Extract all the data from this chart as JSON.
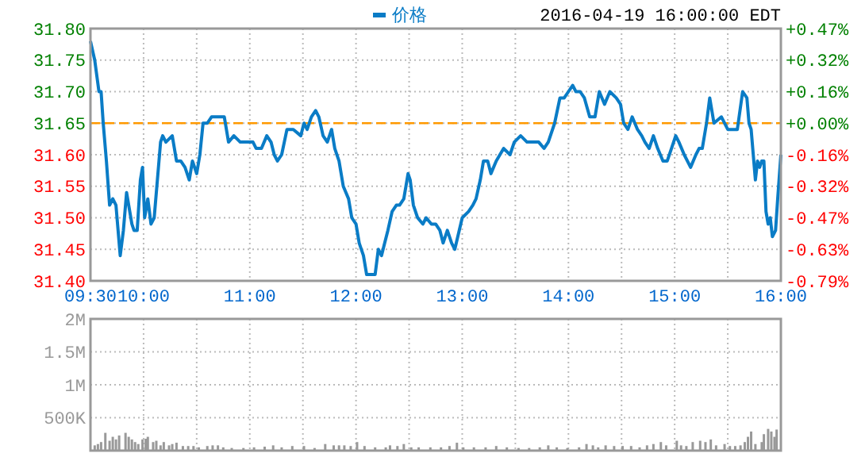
{
  "chart_data": [
    {
      "type": "line",
      "annotations": [
        "2016-04-19 16:00:00 EDT"
      ],
      "series": [
        {
          "name": "价格",
          "color": "#0a7cc6",
          "x": [
            9.5,
            9.54,
            9.58,
            9.6,
            9.62,
            9.65,
            9.68,
            9.71,
            9.74,
            9.76,
            9.78,
            9.81,
            9.84,
            9.87,
            9.89,
            9.91,
            9.94,
            9.97,
            9.99,
            10.01,
            10.04,
            10.07,
            10.1,
            10.13,
            10.16,
            10.18,
            10.21,
            10.27,
            10.31,
            10.35,
            10.39,
            10.43,
            10.46,
            10.5,
            10.53,
            10.56,
            10.6,
            10.64,
            10.7,
            10.76,
            10.8,
            10.85,
            10.91,
            10.98,
            11.03,
            11.06,
            11.11,
            11.16,
            11.2,
            11.23,
            11.26,
            11.3,
            11.35,
            11.41,
            11.48,
            11.51,
            11.54,
            11.58,
            11.62,
            11.65,
            11.69,
            11.73,
            11.77,
            11.8,
            11.84,
            11.88,
            11.93,
            11.96,
            12,
            12.03,
            12.07,
            12.1,
            12.14,
            12.18,
            12.21,
            12.24,
            12.27,
            12.3,
            12.34,
            12.38,
            12.41,
            12.45,
            12.49,
            12.51,
            12.54,
            12.58,
            12.63,
            12.66,
            12.71,
            12.75,
            12.79,
            12.82,
            12.86,
            12.9,
            12.93,
            13.0,
            13.06,
            13.1,
            13.13,
            13.17,
            13.2,
            13.24,
            13.27,
            13.32,
            13.39,
            13.45,
            13.49,
            13.55,
            13.61,
            13.67,
            13.72,
            13.77,
            13.81,
            13.87,
            13.92,
            13.96,
            14.0,
            14.04,
            14.07,
            14.11,
            14.15,
            14.2,
            14.25,
            14.29,
            14.34,
            14.39,
            14.45,
            14.49,
            14.52,
            14.56,
            14.6,
            14.65,
            14.69,
            14.72,
            14.76,
            14.8,
            14.84,
            14.89,
            14.93,
            14.97,
            15.01,
            15.04,
            15.09,
            15.15,
            15.2,
            15.23,
            15.26,
            15.3,
            15.33,
            15.37,
            15.44,
            15.5,
            15.53,
            15.59,
            15.64,
            15.68,
            15.7,
            15.72,
            15.74,
            15.76,
            15.78,
            15.8,
            15.82,
            15.84,
            15.86,
            15.88,
            15.9,
            15.92,
            15.95,
            15.97,
            16.0
          ],
          "values": [
            31.78,
            31.75,
            31.7,
            31.7,
            31.65,
            31.59,
            31.52,
            31.53,
            31.52,
            31.48,
            31.44,
            31.48,
            31.54,
            31.51,
            31.49,
            31.48,
            31.48,
            31.56,
            31.58,
            31.5,
            31.53,
            31.49,
            31.5,
            31.56,
            31.62,
            31.63,
            31.62,
            31.63,
            31.59,
            31.59,
            31.58,
            31.56,
            31.59,
            31.57,
            31.6,
            31.65,
            31.65,
            31.66,
            31.66,
            31.66,
            31.62,
            31.63,
            31.62,
            31.62,
            31.62,
            31.61,
            31.61,
            31.63,
            31.62,
            31.6,
            31.59,
            31.6,
            31.64,
            31.64,
            31.63,
            31.65,
            31.64,
            31.66,
            31.67,
            31.66,
            31.63,
            31.62,
            31.64,
            31.61,
            31.59,
            31.55,
            31.53,
            31.5,
            31.49,
            31.46,
            31.44,
            31.41,
            31.41,
            31.41,
            31.45,
            31.44,
            31.46,
            31.48,
            31.51,
            31.52,
            31.52,
            31.53,
            31.57,
            31.56,
            31.52,
            31.5,
            31.49,
            31.5,
            31.49,
            31.49,
            31.48,
            31.46,
            31.48,
            31.46,
            31.45,
            31.5,
            31.51,
            31.52,
            31.53,
            31.56,
            31.59,
            31.59,
            31.57,
            31.59,
            31.61,
            31.6,
            31.62,
            31.63,
            31.62,
            31.62,
            31.62,
            31.61,
            31.62,
            31.65,
            31.69,
            31.69,
            31.7,
            31.71,
            31.7,
            31.7,
            31.69,
            31.66,
            31.66,
            31.7,
            31.68,
            31.7,
            31.69,
            31.68,
            31.65,
            31.64,
            31.66,
            31.64,
            31.63,
            31.62,
            31.61,
            31.63,
            31.61,
            31.59,
            31.59,
            31.61,
            31.63,
            31.62,
            31.6,
            31.58,
            31.6,
            31.61,
            31.61,
            31.65,
            31.69,
            31.65,
            31.66,
            31.64,
            31.64,
            31.64,
            31.7,
            31.69,
            31.65,
            31.64,
            31.6,
            31.56,
            31.59,
            31.58,
            31.59,
            31.59,
            31.51,
            31.49,
            31.5,
            31.47,
            31.48,
            31.53,
            31.6
          ]
        }
      ],
      "xlim": [
        9.5,
        16
      ],
      "xticks": [
        {
          "value": 9.5,
          "label": "09:30"
        },
        {
          "value": 10,
          "label": "10:00"
        },
        {
          "value": 10.5,
          "label": null
        },
        {
          "value": 11,
          "label": "11:00"
        },
        {
          "value": 11.5,
          "label": null
        },
        {
          "value": 12,
          "label": "12:00"
        },
        {
          "value": 12.5,
          "label": null
        },
        {
          "value": 13,
          "label": "13:00"
        },
        {
          "value": 13.5,
          "label": null
        },
        {
          "value": 14,
          "label": "14:00"
        },
        {
          "value": 14.5,
          "label": null
        },
        {
          "value": 15,
          "label": "15:00"
        },
        {
          "value": 15.5,
          "label": null
        },
        {
          "value": 16,
          "label": "16:00"
        }
      ],
      "ylim": [
        31.4,
        31.8
      ],
      "yticks": [
        {
          "value": 31.4,
          "label": "31.40"
        },
        {
          "value": 31.45,
          "label": "31.45"
        },
        {
          "value": 31.5,
          "label": "31.50"
        },
        {
          "value": 31.55,
          "label": "31.55"
        },
        {
          "value": 31.6,
          "label": "31.60"
        },
        {
          "value": 31.65,
          "label": "31.65"
        },
        {
          "value": 31.7,
          "label": "31.70"
        },
        {
          "value": 31.75,
          "label": "31.75"
        },
        {
          "value": 31.8,
          "label": "31.80"
        }
      ],
      "y2lim": [
        -0.79,
        0.474
      ],
      "y2ticks": [
        {
          "value": -0.79,
          "label": "-0.79%"
        },
        {
          "value": -0.632,
          "label": "-0.63%"
        },
        {
          "value": -0.474,
          "label": "-0.47%"
        },
        {
          "value": -0.316,
          "label": "-0.32%"
        },
        {
          "value": -0.158,
          "label": "-0.16%"
        },
        {
          "value": 0,
          "label": "+0.00%"
        },
        {
          "value": 0.158,
          "label": "+0.16%"
        },
        {
          "value": 0.316,
          "label": "+0.32%"
        },
        {
          "value": 0.474,
          "label": "+0.47%"
        }
      ],
      "ref_lines": [
        {
          "axis": "y",
          "value": 31.65,
          "color": "#ff9900",
          "line_style": "dashed"
        }
      ],
      "grid": true,
      "legend": "top"
    },
    {
      "type": "bar",
      "color": "#999999",
      "tick_labels": "y",
      "grid": true,
      "x": [
        9.54,
        9.57,
        9.6,
        9.64,
        9.68,
        9.71,
        9.74,
        9.77,
        9.83,
        9.86,
        9.89,
        9.92,
        9.95,
        9.99,
        10.02,
        10.04,
        10.09,
        10.12,
        10.16,
        10.19,
        10.24,
        10.27,
        10.31,
        10.37,
        10.42,
        10.47,
        10.52,
        10.6,
        10.65,
        10.7,
        10.75,
        10.83,
        10.94,
        11.04,
        11.14,
        11.22,
        11.3,
        11.4,
        11.51,
        11.61,
        11.71,
        11.79,
        11.84,
        11.89,
        11.95,
        12.01,
        12.08,
        12.18,
        12.28,
        12.32,
        12.39,
        12.45,
        12.52,
        12.59,
        12.7,
        12.8,
        12.88,
        12.95,
        13.01,
        13.11,
        13.22,
        13.32,
        13.42,
        13.53,
        13.63,
        13.73,
        13.81,
        13.89,
        13.99,
        14.1,
        14.17,
        14.23,
        14.28,
        14.35,
        14.43,
        14.51,
        14.59,
        14.67,
        14.74,
        14.8,
        14.87,
        14.92,
        15.02,
        15.06,
        15.11,
        15.17,
        15.24,
        15.29,
        15.34,
        15.39,
        15.47,
        15.52,
        15.57,
        15.62,
        15.66,
        15.69,
        15.72,
        15.76,
        15.82,
        15.84,
        15.88,
        15.91,
        15.94,
        15.96
      ],
      "values": [
        80000,
        100000,
        130000,
        270000,
        150000,
        210000,
        170000,
        230000,
        270000,
        210000,
        170000,
        130000,
        100000,
        170000,
        180000,
        210000,
        130000,
        150000,
        80000,
        130000,
        80000,
        100000,
        120000,
        70000,
        70000,
        70000,
        50000,
        70000,
        80000,
        80000,
        50000,
        40000,
        40000,
        50000,
        60000,
        80000,
        50000,
        70000,
        70000,
        40000,
        100000,
        80000,
        80000,
        80000,
        70000,
        130000,
        70000,
        50000,
        50000,
        80000,
        70000,
        100000,
        50000,
        50000,
        50000,
        50000,
        70000,
        120000,
        50000,
        50000,
        50000,
        70000,
        50000,
        40000,
        40000,
        50000,
        80000,
        50000,
        40000,
        50000,
        100000,
        80000,
        50000,
        80000,
        70000,
        70000,
        70000,
        50000,
        80000,
        100000,
        130000,
        80000,
        150000,
        80000,
        70000,
        130000,
        150000,
        130000,
        170000,
        80000,
        100000,
        70000,
        70000,
        80000,
        130000,
        210000,
        290000,
        100000,
        130000,
        250000,
        330000,
        290000,
        210000,
        320000
      ],
      "xlim": [
        9.5,
        16
      ],
      "xticks": [
        {
          "value": 9.5,
          "label": null
        },
        {
          "value": 10,
          "label": null
        },
        {
          "value": 10.5,
          "label": null
        },
        {
          "value": 11,
          "label": null
        },
        {
          "value": 11.5,
          "label": null
        },
        {
          "value": 12,
          "label": null
        },
        {
          "value": 12.5,
          "label": null
        },
        {
          "value": 13,
          "label": null
        },
        {
          "value": 13.5,
          "label": null
        },
        {
          "value": 14,
          "label": null
        },
        {
          "value": 14.5,
          "label": null
        },
        {
          "value": 15,
          "label": null
        },
        {
          "value": 15.5,
          "label": null
        },
        {
          "value": 16,
          "label": null
        }
      ],
      "ylim": [
        0,
        2000000
      ],
      "yticks": [
        {
          "value": 500000,
          "label": "500K"
        },
        {
          "value": 1000000,
          "label": "1M"
        },
        {
          "value": 1500000,
          "label": "1.5M"
        },
        {
          "value": 2000000,
          "label": "2M"
        }
      ]
    }
  ]
}
